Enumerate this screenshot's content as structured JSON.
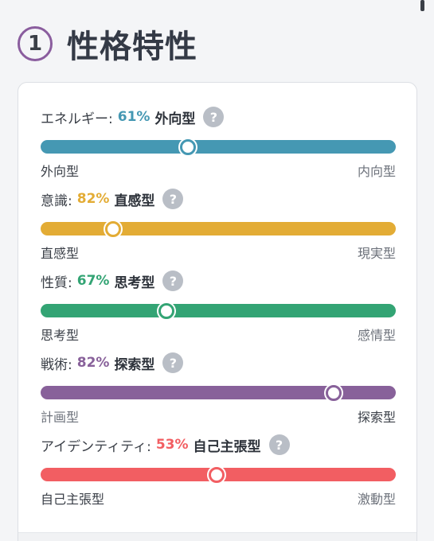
{
  "section": {
    "number": "1",
    "title": "性格特性"
  },
  "traits": [
    {
      "name": "エネルギー:",
      "percent": "61%",
      "type": "外向型",
      "left": "外向型",
      "right": "内向型",
      "color": "#4598b3",
      "position": 0.415,
      "left_dim": false,
      "right_dim": true
    },
    {
      "name": "意識:",
      "percent": "82%",
      "type": "直感型",
      "left": "直感型",
      "right": "現実型",
      "color": "#e3ac35",
      "position": 0.205,
      "left_dim": false,
      "right_dim": true
    },
    {
      "name": "性質:",
      "percent": "67%",
      "type": "思考型",
      "left": "思考型",
      "right": "感情型",
      "color": "#33a474",
      "position": 0.355,
      "left_dim": false,
      "right_dim": true
    },
    {
      "name": "戦術:",
      "percent": "82%",
      "type": "探索型",
      "left": "計画型",
      "right": "探索型",
      "color": "#88619a",
      "position": 0.825,
      "left_dim": true,
      "right_dim": false
    },
    {
      "name": "アイデンティティ:",
      "percent": "53%",
      "type": "自己主張型",
      "left": "自己主張型",
      "right": "激動型",
      "color": "#f25e62",
      "position": 0.495,
      "left_dim": false,
      "right_dim": true
    }
  ],
  "help_glyph": "?"
}
